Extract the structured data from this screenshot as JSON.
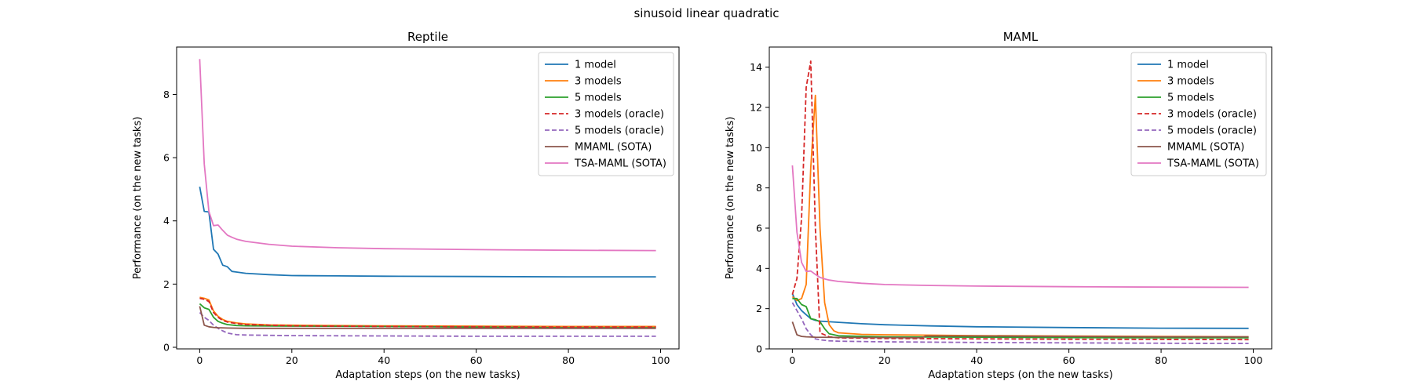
{
  "suptitle": "sinusoid linear quadratic",
  "styles": {
    "1 model": {
      "color": "#1f77b4",
      "dash": ""
    },
    "3 models": {
      "color": "#ff7f0e",
      "dash": ""
    },
    "5 models": {
      "color": "#2ca02c",
      "dash": ""
    },
    "3 models (oracle)": {
      "color": "#d62728",
      "dash": "dashed"
    },
    "5 models (oracle)": {
      "color": "#9467bd",
      "dash": "dashed"
    },
    "MMAML (SOTA)": {
      "color": "#8c564b",
      "dash": ""
    },
    "TSA-MAML (SOTA)": {
      "color": "#e377c2",
      "dash": ""
    }
  },
  "chart_data": [
    {
      "type": "line",
      "title": "Reptile",
      "xlabel": "Adaptation steps (on the new tasks)",
      "ylabel": "Performance (on the new tasks)",
      "xlim": [
        -5,
        104
      ],
      "ylim": [
        -0.05,
        9.5
      ],
      "xticks": [
        0,
        20,
        40,
        60,
        80,
        100
      ],
      "yticks": [
        0,
        2,
        4,
        6,
        8
      ],
      "legend": "top-right",
      "grid": false,
      "series": [
        {
          "name": "1 model",
          "points": [
            [
              0,
              5.08
            ],
            [
              1,
              4.3
            ],
            [
              2,
              4.28
            ],
            [
              3,
              3.1
            ],
            [
              4,
              2.95
            ],
            [
              5,
              2.6
            ],
            [
              6,
              2.55
            ],
            [
              7,
              2.4
            ],
            [
              8,
              2.38
            ],
            [
              10,
              2.34
            ],
            [
              15,
              2.3
            ],
            [
              20,
              2.27
            ],
            [
              30,
              2.26
            ],
            [
              40,
              2.25
            ],
            [
              60,
              2.24
            ],
            [
              80,
              2.23
            ],
            [
              99,
              2.23
            ]
          ]
        },
        {
          "name": "3 models",
          "points": [
            [
              0,
              1.58
            ],
            [
              1,
              1.55
            ],
            [
              2,
              1.5
            ],
            [
              3,
              1.15
            ],
            [
              4,
              0.98
            ],
            [
              5,
              0.88
            ],
            [
              6,
              0.82
            ],
            [
              8,
              0.77
            ],
            [
              10,
              0.74
            ],
            [
              15,
              0.71
            ],
            [
              20,
              0.7
            ],
            [
              40,
              0.68
            ],
            [
              60,
              0.67
            ],
            [
              80,
              0.66
            ],
            [
              99,
              0.66
            ]
          ]
        },
        {
          "name": "5 models",
          "points": [
            [
              0,
              1.38
            ],
            [
              1,
              1.25
            ],
            [
              2,
              1.2
            ],
            [
              3,
              0.95
            ],
            [
              4,
              0.82
            ],
            [
              5,
              0.76
            ],
            [
              6,
              0.72
            ],
            [
              8,
              0.69
            ],
            [
              10,
              0.68
            ],
            [
              20,
              0.67
            ],
            [
              40,
              0.66
            ],
            [
              60,
              0.64
            ],
            [
              80,
              0.62
            ],
            [
              99,
              0.62
            ]
          ]
        },
        {
          "name": "3 models (oracle)",
          "points": [
            [
              0,
              1.55
            ],
            [
              1,
              1.52
            ],
            [
              2,
              1.45
            ],
            [
              3,
              1.1
            ],
            [
              4,
              0.95
            ],
            [
              5,
              0.85
            ],
            [
              6,
              0.8
            ],
            [
              8,
              0.75
            ],
            [
              10,
              0.72
            ],
            [
              20,
              0.68
            ],
            [
              40,
              0.66
            ],
            [
              60,
              0.65
            ],
            [
              80,
              0.64
            ],
            [
              99,
              0.64
            ]
          ]
        },
        {
          "name": "5 models (oracle)",
          "points": [
            [
              0,
              1.1
            ],
            [
              1,
              0.95
            ],
            [
              2,
              0.85
            ],
            [
              3,
              0.7
            ],
            [
              4,
              0.6
            ],
            [
              5,
              0.52
            ],
            [
              6,
              0.45
            ],
            [
              8,
              0.4
            ],
            [
              10,
              0.39
            ],
            [
              20,
              0.37
            ],
            [
              40,
              0.36
            ],
            [
              60,
              0.35
            ],
            [
              80,
              0.35
            ],
            [
              99,
              0.35
            ]
          ]
        },
        {
          "name": "MMAML (SOTA)",
          "points": [
            [
              0,
              1.3
            ],
            [
              1,
              0.7
            ],
            [
              2,
              0.65
            ],
            [
              3,
              0.63
            ],
            [
              4,
              0.62
            ],
            [
              6,
              0.61
            ],
            [
              10,
              0.6
            ],
            [
              20,
              0.6
            ],
            [
              40,
              0.6
            ],
            [
              60,
              0.6
            ],
            [
              80,
              0.6
            ],
            [
              99,
              0.6
            ]
          ]
        },
        {
          "name": "TSA-MAML (SOTA)",
          "points": [
            [
              0,
              9.12
            ],
            [
              1,
              5.8
            ],
            [
              2,
              4.3
            ],
            [
              3,
              3.85
            ],
            [
              4,
              3.87
            ],
            [
              5,
              3.7
            ],
            [
              6,
              3.55
            ],
            [
              7,
              3.48
            ],
            [
              8,
              3.42
            ],
            [
              10,
              3.35
            ],
            [
              15,
              3.26
            ],
            [
              20,
              3.2
            ],
            [
              30,
              3.15
            ],
            [
              40,
              3.12
            ],
            [
              60,
              3.09
            ],
            [
              80,
              3.07
            ],
            [
              99,
              3.06
            ]
          ]
        }
      ]
    },
    {
      "type": "line",
      "title": "MAML",
      "xlabel": "Adaptation steps (on the new tasks)",
      "ylabel": "Performance (on the new tasks)",
      "xlim": [
        -5,
        104
      ],
      "ylim": [
        0,
        15
      ],
      "xticks": [
        0,
        20,
        40,
        60,
        80,
        100
      ],
      "yticks": [
        0,
        2,
        4,
        6,
        8,
        10,
        12,
        14
      ],
      "legend": "top-right",
      "grid": false,
      "series": [
        {
          "name": "1 model",
          "points": [
            [
              0,
              2.75
            ],
            [
              1,
              2.2
            ],
            [
              2,
              1.9
            ],
            [
              3,
              1.7
            ],
            [
              4,
              1.5
            ],
            [
              5,
              1.42
            ],
            [
              6,
              1.38
            ],
            [
              8,
              1.35
            ],
            [
              10,
              1.32
            ],
            [
              15,
              1.25
            ],
            [
              20,
              1.2
            ],
            [
              30,
              1.14
            ],
            [
              40,
              1.1
            ],
            [
              60,
              1.06
            ],
            [
              80,
              1.03
            ],
            [
              99,
              1.02
            ]
          ]
        },
        {
          "name": "3 models",
          "points": [
            [
              0,
              2.6
            ],
            [
              1,
              2.4
            ],
            [
              2,
              2.5
            ],
            [
              3,
              3.2
            ],
            [
              4,
              9.0
            ],
            [
              5,
              12.6
            ],
            [
              6,
              6.0
            ],
            [
              7,
              2.3
            ],
            [
              8,
              1.2
            ],
            [
              9,
              0.9
            ],
            [
              10,
              0.8
            ],
            [
              15,
              0.72
            ],
            [
              20,
              0.7
            ],
            [
              30,
              0.68
            ],
            [
              40,
              0.66
            ],
            [
              60,
              0.64
            ],
            [
              80,
              0.62
            ],
            [
              99,
              0.6
            ]
          ]
        },
        {
          "name": "5 models",
          "points": [
            [
              0,
              2.5
            ],
            [
              1,
              2.5
            ],
            [
              2,
              2.2
            ],
            [
              3,
              2.1
            ],
            [
              4,
              1.5
            ],
            [
              5,
              1.45
            ],
            [
              6,
              1.35
            ],
            [
              7,
              1.0
            ],
            [
              8,
              0.75
            ],
            [
              10,
              0.65
            ],
            [
              20,
              0.6
            ],
            [
              40,
              0.58
            ],
            [
              60,
              0.56
            ],
            [
              80,
              0.55
            ],
            [
              99,
              0.55
            ]
          ]
        },
        {
          "name": "3 models (oracle)",
          "points": [
            [
              0,
              2.7
            ],
            [
              1,
              3.5
            ],
            [
              2,
              6.5
            ],
            [
              3,
              13.0
            ],
            [
              4,
              14.3
            ],
            [
              5,
              6.0
            ],
            [
              6,
              0.8
            ],
            [
              8,
              0.6
            ],
            [
              10,
              0.55
            ],
            [
              20,
              0.52
            ],
            [
              40,
              0.5
            ],
            [
              60,
              0.48
            ],
            [
              80,
              0.47
            ],
            [
              99,
              0.46
            ]
          ]
        },
        {
          "name": "5 models (oracle)",
          "points": [
            [
              0,
              2.3
            ],
            [
              1,
              1.9
            ],
            [
              2,
              1.5
            ],
            [
              3,
              1.0
            ],
            [
              4,
              0.7
            ],
            [
              5,
              0.5
            ],
            [
              6,
              0.45
            ],
            [
              8,
              0.4
            ],
            [
              10,
              0.38
            ],
            [
              20,
              0.35
            ],
            [
              40,
              0.32
            ],
            [
              60,
              0.3
            ],
            [
              80,
              0.28
            ],
            [
              99,
              0.27
            ]
          ]
        },
        {
          "name": "MMAML (SOTA)",
          "points": [
            [
              0,
              1.35
            ],
            [
              1,
              0.7
            ],
            [
              2,
              0.62
            ],
            [
              3,
              0.6
            ],
            [
              5,
              0.58
            ],
            [
              10,
              0.57
            ],
            [
              20,
              0.56
            ],
            [
              28,
              0.55
            ],
            [
              29,
              0.64
            ],
            [
              40,
              0.64
            ],
            [
              60,
              0.62
            ],
            [
              80,
              0.6
            ],
            [
              99,
              0.6
            ]
          ]
        },
        {
          "name": "TSA-MAML (SOTA)",
          "points": [
            [
              0,
              9.12
            ],
            [
              1,
              5.8
            ],
            [
              2,
              4.3
            ],
            [
              3,
              3.85
            ],
            [
              4,
              3.87
            ],
            [
              5,
              3.7
            ],
            [
              6,
              3.55
            ],
            [
              7,
              3.48
            ],
            [
              8,
              3.42
            ],
            [
              10,
              3.35
            ],
            [
              15,
              3.26
            ],
            [
              20,
              3.2
            ],
            [
              30,
              3.15
            ],
            [
              40,
              3.12
            ],
            [
              60,
              3.09
            ],
            [
              80,
              3.07
            ],
            [
              99,
              3.06
            ]
          ]
        }
      ]
    }
  ]
}
